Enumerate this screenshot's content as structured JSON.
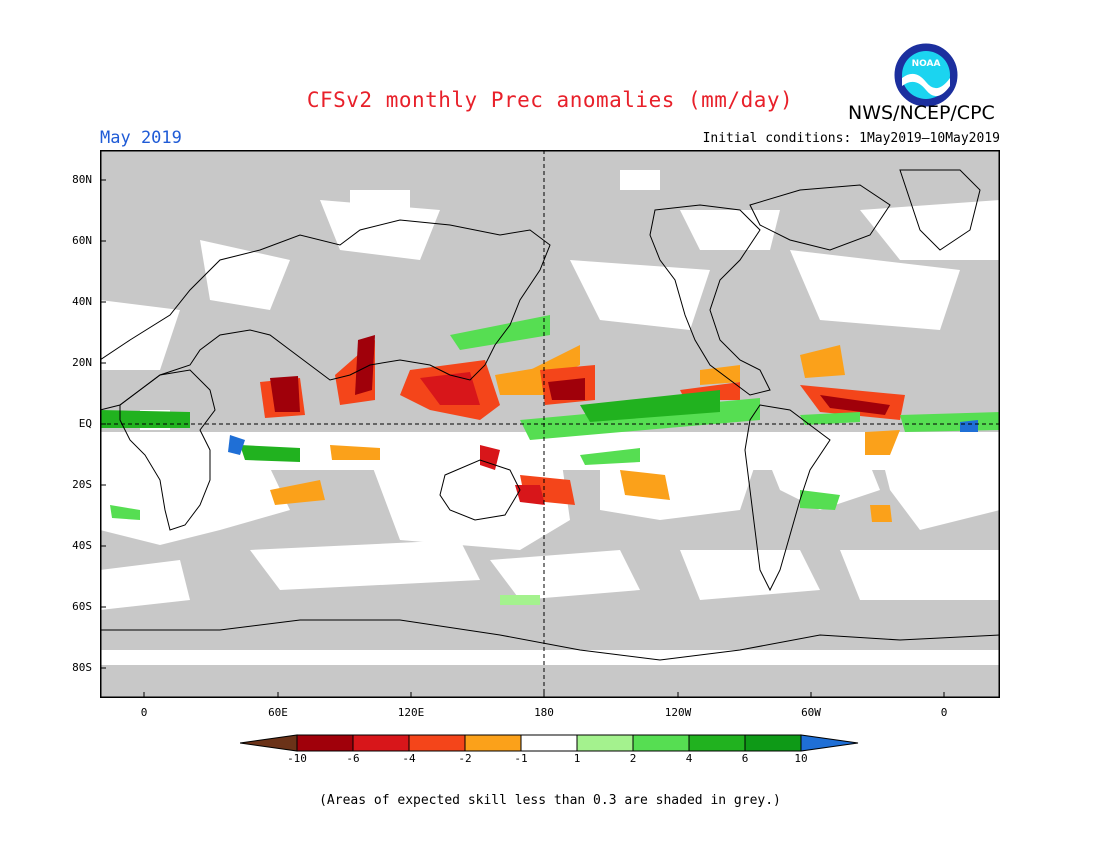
{
  "title": "CFSv2 monthly Prec anomalies (mm/day)",
  "agency": "NWS/NCEP/CPC",
  "logo_text": "NOAA",
  "month": "May 2019",
  "initial_conditions": "Initial conditions: 1May2019—10May2019",
  "lat_labels": [
    "80N",
    "60N",
    "40N",
    "20N",
    "EQ",
    "20S",
    "40S",
    "60S",
    "80S"
  ],
  "lon_labels": [
    "0",
    "60E",
    "120E",
    "180",
    "120W",
    "60W",
    "0"
  ],
  "colorbar": {
    "labels": [
      "-10",
      "-6",
      "-4",
      "-2",
      "-1",
      "1",
      "2",
      "4",
      "6",
      "10"
    ],
    "colors": [
      "#6b3218",
      "#a0000a",
      "#d8161a",
      "#f4451a",
      "#fba11a",
      "#ffffff",
      "#a4f28e",
      "#56de52",
      "#21b21f",
      "#0e9a17",
      "#1f6fd6"
    ]
  },
  "footnote": "(Areas of expected skill less than 0.3 are shaded in grey.)",
  "colors": {
    "grey": "#c8c8c8",
    "title": "#e8202a",
    "month": "#1f5bd6"
  }
}
